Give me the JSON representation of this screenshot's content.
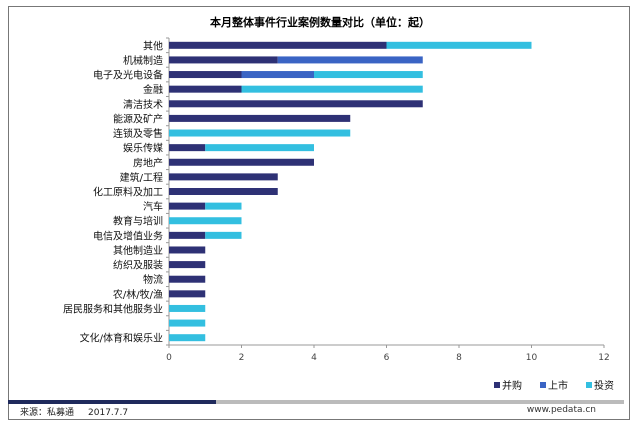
{
  "chart_data": {
    "type": "bar",
    "orientation": "horizontal",
    "stacked": true,
    "title": "本月整体事件行业案例数量对比（单位：起）",
    "categories": [
      "其他",
      "机械制造",
      "电子及光电设备",
      "金融",
      "清洁技术",
      "能源及矿产",
      "连锁及零售",
      "娱乐传媒",
      "房地产",
      "建筑/工程",
      "化工原料及加工",
      "汽车",
      "教育与培训",
      "电信及增值业务",
      "其他制造业",
      "纺织及服装",
      "物流",
      "农/林/牧/渔",
      "居民服务和其他服务业",
      "",
      "文化/体育和娱乐业"
    ],
    "series": [
      {
        "name": "并购",
        "color": "#2e3175",
        "values": [
          6,
          3,
          2,
          2,
          7,
          5,
          0,
          1,
          4,
          3,
          3,
          1,
          0,
          1,
          1,
          1,
          1,
          1,
          0,
          0,
          0
        ]
      },
      {
        "name": "上市",
        "color": "#3a64c4",
        "values": [
          0,
          4,
          2,
          0,
          0,
          0,
          0,
          0,
          0,
          0,
          0,
          0,
          0,
          0,
          0,
          0,
          0,
          0,
          0,
          0,
          0
        ]
      },
      {
        "name": "投资",
        "color": "#33bfe0",
        "values": [
          4,
          0,
          3,
          5,
          0,
          0,
          5,
          3,
          0,
          0,
          0,
          1,
          2,
          1,
          0,
          0,
          0,
          0,
          1,
          1,
          1
        ]
      }
    ],
    "xlim": [
      0,
      12
    ],
    "xticks": [
      "0",
      "2",
      "4",
      "6",
      "8",
      "10",
      "12"
    ],
    "legend": "bottom-right",
    "grid": false
  },
  "footer": {
    "source": "来源：私募通",
    "date": "2017.7.7",
    "url": "www.pedata.cn"
  }
}
